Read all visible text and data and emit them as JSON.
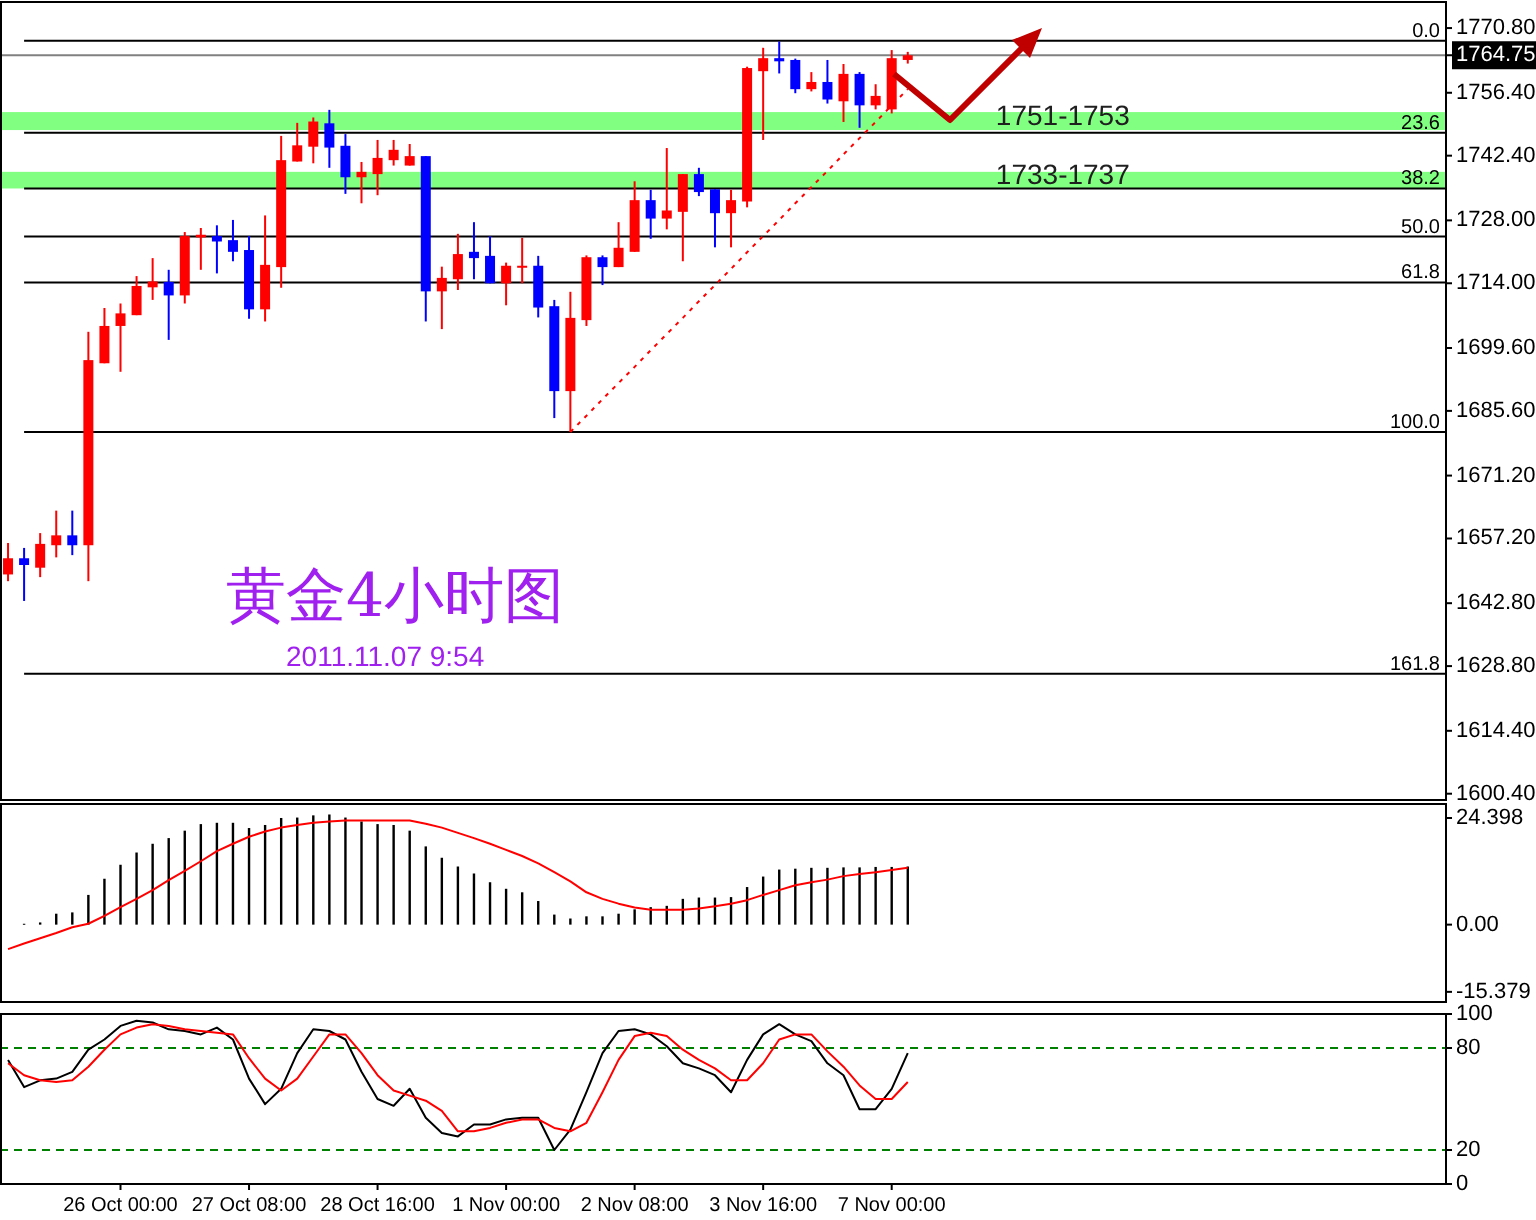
{
  "chart_data": [
    {
      "type": "candlestick",
      "title": "黄金4小时图",
      "subtitle": "2011.11.07 9:54",
      "categories": [
        null,
        null,
        null,
        null,
        null,
        null,
        null,
        null,
        null,
        null,
        null,
        null,
        null,
        null,
        null,
        null,
        null,
        null,
        null,
        null,
        null,
        null,
        null,
        null,
        null,
        null,
        null,
        null,
        null,
        null,
        null,
        null,
        null,
        null,
        null,
        null,
        null,
        null,
        null,
        null,
        null,
        null,
        null,
        null,
        null,
        null,
        null,
        null,
        null,
        null,
        null,
        null,
        null,
        null,
        null,
        null,
        null,
        null,
        null,
        null,
        null,
        null,
        null,
        null,
        null,
        null,
        null,
        null,
        null,
        null,
        null,
        null,
        null,
        null,
        null,
        null,
        null,
        null,
        null,
        null,
        null,
        null,
        null,
        null,
        null,
        null,
        null,
        null,
        null,
        null
      ],
      "ohlc": [
        [
          1649.2,
          1656.2,
          1647.7,
          1652.8
        ],
        [
          1652.8,
          1655.1,
          1643.3,
          1651.3
        ],
        [
          1650.7,
          1658.4,
          1648.6,
          1656.0
        ],
        [
          1655.7,
          1663.4,
          1653.0,
          1657.9
        ],
        [
          1657.9,
          1663.4,
          1653.5,
          1655.7
        ],
        [
          1655.7,
          1703.2,
          1647.7,
          1696.9
        ],
        [
          1696.2,
          1708.5,
          1696.2,
          1704.5
        ],
        [
          1704.5,
          1709.5,
          1694.3,
          1707.3
        ],
        [
          1706.9,
          1715.6,
          1706.9,
          1713.4
        ],
        [
          1713.1,
          1719.6,
          1710.3,
          1714.4
        ],
        [
          1714.3,
          1717.0,
          1701.4,
          1711.3
        ],
        [
          1711.3,
          1725.4,
          1709.5,
          1724.5
        ],
        [
          1724.2,
          1726.3,
          1717.0,
          1724.8
        ],
        [
          1724.5,
          1726.9,
          1716.2,
          1723.3
        ],
        [
          1723.6,
          1728.1,
          1718.9,
          1721.0
        ],
        [
          1721.4,
          1724.5,
          1706.1,
          1708.2
        ],
        [
          1708.2,
          1729.1,
          1705.5,
          1718.1
        ],
        [
          1717.6,
          1746.8,
          1713.0,
          1741.4
        ],
        [
          1741.1,
          1749.7,
          1741.1,
          1744.7
        ],
        [
          1744.4,
          1750.9,
          1740.7,
          1750.0
        ],
        [
          1749.6,
          1752.6,
          1739.7,
          1744.2
        ],
        [
          1744.6,
          1747.2,
          1733.9,
          1737.6
        ],
        [
          1737.6,
          1741.0,
          1731.8,
          1738.8
        ],
        [
          1738.3,
          1745.9,
          1733.6,
          1741.9
        ],
        [
          1741.4,
          1745.9,
          1740.2,
          1743.7
        ],
        [
          1740.2,
          1745.0,
          1740.2,
          1742.3
        ],
        [
          1742.3,
          1742.3,
          1705.5,
          1712.2
        ],
        [
          1712.2,
          1717.7,
          1703.8,
          1715.2
        ],
        [
          1714.9,
          1725.0,
          1712.5,
          1720.5
        ],
        [
          1721.0,
          1727.6,
          1714.9,
          1719.6
        ],
        [
          1720.1,
          1724.5,
          1714.0,
          1714.0
        ],
        [
          1714.0,
          1718.6,
          1709.1,
          1717.9
        ],
        [
          1717.6,
          1724.1,
          1714.0,
          1717.9
        ],
        [
          1717.9,
          1720.1,
          1706.4,
          1708.6
        ],
        [
          1708.9,
          1710.3,
          1684.0,
          1690.0
        ],
        [
          1690.0,
          1712.1,
          1680.9,
          1706.3
        ],
        [
          1705.8,
          1720.2,
          1704.5,
          1719.8
        ],
        [
          1719.8,
          1720.2,
          1713.6,
          1717.6
        ],
        [
          1717.6,
          1727.6,
          1717.6,
          1721.9
        ],
        [
          1721.0,
          1736.7,
          1721.0,
          1732.5
        ],
        [
          1732.5,
          1734.8,
          1723.9,
          1728.4
        ],
        [
          1728.4,
          1744.1,
          1726.0,
          1730.2
        ],
        [
          1729.9,
          1738.3,
          1718.9,
          1738.3
        ],
        [
          1738.3,
          1739.7,
          1733.4,
          1734.3
        ],
        [
          1734.9,
          1734.9,
          1722.0,
          1729.6
        ],
        [
          1729.6,
          1734.8,
          1722.0,
          1732.5
        ],
        [
          1732.2,
          1762.2,
          1730.9,
          1761.9
        ],
        [
          1761.2,
          1766.4,
          1745.9,
          1764.1
        ],
        [
          1764.1,
          1767.8,
          1760.7,
          1763.4
        ],
        [
          1763.7,
          1764.0,
          1756.3,
          1757.2
        ],
        [
          1757.2,
          1761.0,
          1756.7,
          1758.8
        ],
        [
          1758.8,
          1763.7,
          1754.0,
          1754.9
        ],
        [
          1754.5,
          1762.8,
          1749.9,
          1760.6
        ],
        [
          1760.6,
          1761.0,
          1748.6,
          1753.6
        ],
        [
          1753.6,
          1758.3,
          1752.7,
          1755.7
        ],
        [
          1752.7,
          1765.9,
          1751.8,
          1764.1
        ],
        [
          1763.7,
          1765.5,
          1762.9,
          1764.75
        ],
        null,
        null,
        null,
        null,
        null,
        null,
        null,
        null,
        null,
        null,
        null,
        null,
        null,
        null,
        null,
        null,
        null,
        null,
        null,
        null,
        null,
        null,
        null,
        null,
        null,
        null,
        null,
        null,
        null,
        null,
        null,
        null,
        null
      ],
      "colors": [
        "#ff0000",
        "#0000ff",
        "#ff0000",
        "#ff0000",
        "#0000ff",
        "#ff0000",
        "#ff0000",
        "#ff0000",
        "#ff0000",
        "#ff0000",
        "#0000ff",
        "#ff0000",
        "#ff0000",
        "#0000ff",
        "#0000ff",
        "#0000ff",
        "#ff0000",
        "#ff0000",
        "#ff0000",
        "#ff0000",
        "#0000ff",
        "#0000ff",
        "#ff0000",
        "#ff0000",
        "#ff0000",
        "#ff0000",
        "#0000ff",
        "#ff0000",
        "#ff0000",
        "#0000ff",
        "#0000ff",
        "#ff0000",
        "#ff0000",
        "#0000ff",
        "#0000ff",
        "#ff0000",
        "#ff0000",
        "#0000ff",
        "#ff0000",
        "#ff0000",
        "#0000ff",
        "#ff0000",
        "#ff0000",
        "#0000ff",
        "#0000ff",
        "#ff0000",
        "#ff0000",
        "#ff0000",
        "#0000ff",
        "#0000ff",
        "#ff0000",
        "#0000ff",
        "#ff0000",
        "#0000ff",
        "#ff0000",
        "#ff0000",
        "#ff0000",
        null,
        null,
        null,
        null,
        null,
        null,
        null,
        null,
        null,
        null,
        null,
        null,
        null,
        null,
        null,
        null,
        null,
        null,
        null,
        null,
        null,
        null,
        null,
        null,
        null,
        null,
        null,
        null,
        null,
        null,
        null,
        null,
        null
      ],
      "series": [
        {
          "type": "line",
          "values": [
            null,
            null,
            null,
            null,
            null,
            null,
            null,
            null,
            null,
            null,
            null,
            null,
            null,
            null,
            null,
            null,
            null,
            null,
            null,
            null,
            null,
            null,
            null,
            null,
            null,
            null,
            null,
            null,
            null,
            null,
            null,
            null,
            null,
            null,
            null,
            1680.9,
            1684.5,
            1688.2,
            1691.8,
            1695.4,
            1699.1,
            1702.7,
            1706.3,
            1710.0,
            1713.6,
            1717.2,
            1720.9,
            1724.5,
            1728.1,
            1731.8,
            1735.4,
            1739.0,
            1742.7,
            1746.3,
            1749.9,
            1753.6,
            1757.2,
            null,
            null,
            null,
            null,
            null,
            null,
            null,
            null,
            null,
            null,
            null,
            null,
            null,
            null,
            null,
            null,
            null,
            null,
            null,
            null,
            null,
            null,
            null,
            null,
            null,
            null,
            null,
            null,
            null,
            null,
            null,
            null,
            null
          ],
          "color": "#ff0000",
          "line_style": "dotted"
        }
      ],
      "ylim": [
        1599.0,
        1776.6
      ],
      "yticks": [
        {
          "value": 1770.8,
          "label": "1770.80"
        },
        {
          "value": 1764.75,
          "label": "1764.75"
        },
        {
          "value": 1756.4,
          "label": "1756.40"
        },
        {
          "value": 1742.4,
          "label": "1742.40"
        },
        {
          "value": 1728.0,
          "label": "1728.00"
        },
        {
          "value": 1714.0,
          "label": "1714.00"
        },
        {
          "value": 1699.6,
          "label": "1699.60"
        },
        {
          "value": 1685.6,
          "label": "1685.60"
        },
        {
          "value": 1671.2,
          "label": "1671.20"
        },
        {
          "value": 1657.2,
          "label": "1657.20"
        },
        {
          "value": 1642.8,
          "label": "1642.80"
        },
        {
          "value": 1628.8,
          "label": "1628.80"
        },
        {
          "value": 1614.4,
          "label": "1614.40"
        },
        {
          "value": 1600.4,
          "label": "1600.40"
        }
      ],
      "ref_lines": [
        {
          "axis": "y",
          "value": 1764.75,
          "color": "#808080"
        },
        {
          "axis": "y",
          "value": 1768.0,
          "color": "#000000"
        },
        {
          "axis": "y",
          "value": 1747.5,
          "color": "#000000"
        },
        {
          "axis": "y",
          "value": 1735.1,
          "color": "#000000"
        },
        {
          "axis": "y",
          "value": 1724.4,
          "color": "#000000"
        },
        {
          "axis": "y",
          "value": 1714.2,
          "color": "#000000"
        },
        {
          "axis": "y",
          "value": 1680.9,
          "color": "#000000"
        },
        {
          "axis": "y",
          "value": 1627.1,
          "color": "#000000"
        }
      ],
      "annotations": [
        {
          "text": "0.0",
          "y": 1768.0
        },
        {
          "text": "23.6",
          "y": 1747.5
        },
        {
          "text": "38.2",
          "y": 1735.1
        },
        {
          "text": "50.0",
          "y": 1724.4
        },
        {
          "text": "61.8",
          "y": 1714.2
        },
        {
          "text": "100.0",
          "y": 1680.9
        },
        {
          "text": "161.8",
          "y": 1627.1
        }
      ],
      "bands": [
        {
          "axis": "y",
          "from": 1748.1,
          "to": 1752.1,
          "label": "1751-1753",
          "color": "#80ff80"
        },
        {
          "axis": "y",
          "from": 1735.1,
          "to": 1738.8,
          "label": "1733-1737",
          "color": "#80ff80"
        }
      ],
      "tick_labels": "y"
    },
    {
      "type": "bar",
      "categories": [
        null,
        null,
        null,
        null,
        null,
        null,
        null,
        null,
        null,
        null,
        null,
        null,
        null,
        null,
        null,
        null,
        null,
        null,
        null,
        null,
        null,
        null,
        null,
        null,
        null,
        null,
        null,
        null,
        null,
        null,
        null,
        null,
        null,
        null,
        null,
        null,
        null,
        null,
        null,
        null,
        null,
        null,
        null,
        null,
        null,
        null,
        null,
        null,
        null,
        null,
        null,
        null,
        null,
        null,
        null,
        null,
        null,
        null,
        null,
        null,
        null,
        null,
        null,
        null,
        null,
        null,
        null,
        null,
        null,
        null,
        null,
        null,
        null,
        null,
        null,
        null,
        null,
        null,
        null,
        null,
        null,
        null,
        null,
        null,
        null,
        null,
        null,
        null,
        null,
        null
      ],
      "series": [
        {
          "type": "bar",
          "color": "#000000",
          "values": [
            null,
            0.2,
            0.5,
            2.5,
            2.8,
            6.8,
            10.5,
            13.7,
            16.5,
            18.5,
            19.8,
            21.5,
            23.0,
            23.3,
            23.3,
            22.1,
            22.8,
            24.4,
            24.5,
            25.0,
            25.2,
            24.5,
            23.6,
            23.0,
            22.8,
            21.5,
            17.9,
            15.3,
            13.3,
            11.7,
            9.7,
            8.2,
            7.4,
            5.4,
            2.3,
            1.4,
            1.9,
            1.9,
            2.5,
            3.5,
            4.0,
            4.3,
            5.9,
            6.2,
            6.2,
            6.3,
            8.6,
            11.0,
            12.6,
            12.8,
            13.0,
            13.0,
            13.1,
            13.1,
            13.2,
            13.2,
            13.3,
            null,
            null,
            null,
            null,
            null,
            null,
            null,
            null,
            null,
            null,
            null,
            null,
            null,
            null,
            null,
            null,
            null,
            null,
            null,
            null,
            null,
            null,
            null,
            null,
            null,
            null,
            null,
            null,
            null,
            null,
            null,
            null,
            null
          ]
        },
        {
          "type": "line",
          "color": "#ff0000",
          "values": [
            -5.6,
            -4.3,
            -3.1,
            -1.9,
            -0.6,
            0.2,
            2.0,
            4.0,
            5.9,
            7.9,
            10.2,
            12.3,
            14.5,
            16.8,
            18.5,
            20.1,
            21.3,
            22.2,
            22.8,
            23.3,
            23.6,
            23.8,
            23.8,
            23.8,
            23.8,
            23.8,
            23.1,
            22.2,
            21.0,
            19.8,
            18.5,
            17.1,
            15.7,
            14.0,
            12.0,
            9.9,
            7.4,
            5.9,
            4.8,
            3.9,
            3.4,
            3.4,
            3.4,
            3.7,
            4.2,
            4.8,
            5.6,
            6.8,
            7.9,
            9.0,
            9.7,
            10.3,
            11.1,
            11.6,
            12.0,
            12.5,
            13.0,
            null,
            null,
            null,
            null,
            null,
            null,
            null,
            null,
            null,
            null,
            null,
            null,
            null,
            null,
            null,
            null,
            null,
            null,
            null,
            null,
            null,
            null,
            null,
            null,
            null,
            null,
            null,
            null,
            null,
            null,
            null,
            null,
            null
          ]
        }
      ],
      "ylim": [
        -17.7,
        27.6
      ],
      "yticks": [
        24.398,
        {
          "value": 0,
          "label": "0.00"
        },
        -15.379
      ],
      "tick_labels": "y"
    },
    {
      "type": "line",
      "categories": [
        null,
        null,
        null,
        null,
        null,
        null,
        null,
        "26 Oct 00:00",
        null,
        null,
        null,
        null,
        null,
        null,
        null,
        "27 Oct 08:00",
        null,
        null,
        null,
        null,
        null,
        null,
        null,
        "28 Oct 16:00",
        null,
        null,
        null,
        null,
        null,
        null,
        null,
        "1 Nov 00:00",
        null,
        null,
        null,
        null,
        null,
        null,
        null,
        "2 Nov 08:00",
        null,
        null,
        null,
        null,
        null,
        null,
        null,
        "3 Nov 16:00",
        null,
        null,
        null,
        null,
        null,
        null,
        null,
        "7 Nov 00:00",
        null,
        null,
        null,
        null,
        null,
        null,
        null,
        null,
        null,
        null,
        null,
        null,
        null,
        null,
        null,
        null,
        null,
        null,
        null,
        null,
        null,
        null,
        null,
        null,
        null,
        null,
        null,
        null,
        null,
        null,
        null,
        null,
        null,
        null
      ],
      "series": [
        {
          "type": "line",
          "color": "#000000",
          "values": [
            73,
            57,
            61,
            62,
            66,
            79,
            85,
            93,
            96,
            95,
            91,
            90,
            88,
            92,
            85,
            62,
            47,
            56,
            77,
            91,
            90,
            85,
            66,
            50,
            46,
            56,
            39,
            30,
            28,
            35,
            35,
            38,
            39,
            39,
            20,
            32,
            54,
            77,
            90,
            91,
            88,
            81,
            71,
            68,
            64,
            54,
            73,
            88,
            94,
            88,
            84,
            71,
            64,
            44,
            44,
            56,
            77,
            null,
            null,
            null,
            null,
            null,
            null,
            null,
            null,
            null,
            null,
            null,
            null,
            null,
            null,
            null,
            null,
            null,
            null,
            null,
            null,
            null,
            null,
            null,
            null,
            null,
            null,
            null,
            null,
            null,
            null,
            null,
            null,
            null
          ]
        },
        {
          "type": "line",
          "color": "#ff0000",
          "values": [
            71,
            64,
            61,
            60,
            61,
            69,
            79,
            88,
            92,
            94,
            93,
            91,
            90,
            89,
            88,
            74,
            62,
            55,
            62,
            75,
            88,
            88,
            77,
            64,
            55,
            52,
            49,
            43,
            31,
            31,
            33,
            36,
            38,
            38,
            33,
            31,
            36,
            54,
            73,
            87,
            89,
            87,
            79,
            73,
            68,
            61,
            61,
            71,
            85,
            88,
            88,
            78,
            69,
            58,
            50,
            50,
            60,
            null,
            null,
            null,
            null,
            null,
            null,
            null,
            null,
            null,
            null,
            null,
            null,
            null,
            null,
            null,
            null,
            null,
            null,
            null,
            null,
            null,
            null,
            null,
            null,
            null,
            null,
            null,
            null,
            null,
            null,
            null,
            null,
            null
          ]
        }
      ],
      "ylim": [
        0,
        100
      ],
      "yticks": [
        100,
        80,
        20,
        0
      ],
      "ref_lines": [
        {
          "axis": "y",
          "value": 80,
          "color": "#008000",
          "line_style": "dashed"
        },
        {
          "axis": "y",
          "value": 20,
          "color": "#008000",
          "line_style": "dashed"
        }
      ]
    }
  ]
}
